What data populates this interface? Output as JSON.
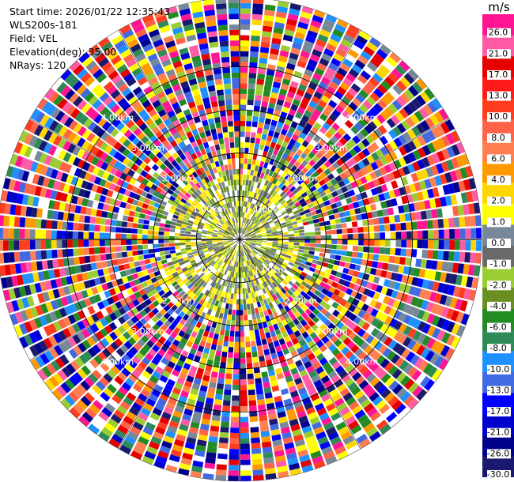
{
  "header": {
    "start_time": "Start time: 2026/01/22 12:35:43",
    "instrument": "WLS200s-181",
    "field": "Field: VEL",
    "elevation": "Elevation(deg): 35.00",
    "nrays": "NRays: 120"
  },
  "chart_data": {
    "type": "heatmap",
    "projection": "polar-ppi",
    "unit": "m/s",
    "nrays": 120,
    "elevation_deg": 35.0,
    "range_rings_km": [
      "1.00km",
      "2.00km",
      "3.00km",
      "4.00km"
    ],
    "range_ring_values_km": [
      1.0,
      2.0,
      3.0,
      4.0
    ],
    "max_range_km": 5.6,
    "colorbar": {
      "ticks": [
        "26.0",
        "21.0",
        "17.0",
        "13.0",
        "10.0",
        "8.0",
        "6.0",
        "4.0",
        "2.0",
        "1.0",
        "0.0",
        "-1.0",
        "-2.0",
        "-4.0",
        "-6.0",
        "-8.0",
        "-10.0",
        "-13.0",
        "-17.0",
        "-21.0",
        "-26.0",
        "-30.0"
      ],
      "colors": [
        "#ff1493",
        "#ff5aa5",
        "#e60000",
        "#ff1a1a",
        "#ff3c1e",
        "#ff6347",
        "#ff7f50",
        "#ff9900",
        "#ffd700",
        "#ffff00",
        "#778899",
        "#696969",
        "#9acd32",
        "#6b8e23",
        "#228b22",
        "#2e8b57",
        "#1e90ff",
        "#4169e1",
        "#0000ff",
        "#0000cd",
        "#00008b",
        "#191970"
      ]
    },
    "near_field_colors": [
      "#ffff00",
      "#ffd700",
      "#9acd32",
      "#778899",
      "#696969",
      "#6b8e23",
      "#ffffff"
    ],
    "far_field_colors": [
      "#ff1493",
      "#ff5aa5",
      "#e60000",
      "#ff3c1e",
      "#ff6347",
      "#ff7f50",
      "#ff9900",
      "#ffd700",
      "#ffff00",
      "#778899",
      "#9acd32",
      "#228b22",
      "#2e8b57",
      "#1e90ff",
      "#4169e1",
      "#0000ff",
      "#0000cd",
      "#00008b",
      "#191970",
      "#ffffff"
    ]
  }
}
